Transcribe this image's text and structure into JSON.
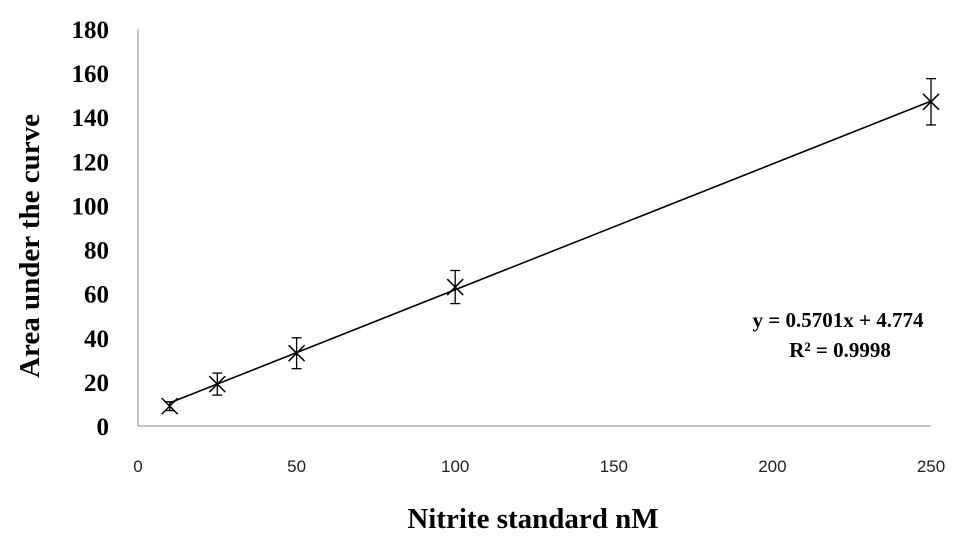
{
  "chart_data": {
    "type": "scatter",
    "xlabel": "Nitrite standard nM",
    "ylabel": "Area under the curve",
    "xlim": [
      0,
      250
    ],
    "ylim": [
      0,
      180
    ],
    "xticks": [
      0,
      50,
      100,
      150,
      200,
      250
    ],
    "yticks": [
      0,
      20,
      40,
      60,
      80,
      100,
      120,
      140,
      160,
      180
    ],
    "grid": false,
    "marker": "x",
    "points": [
      {
        "x": 10,
        "y": 9,
        "err": 2
      },
      {
        "x": 25,
        "y": 19,
        "err": 5
      },
      {
        "x": 50,
        "y": 33,
        "err": 7
      },
      {
        "x": 100,
        "y": 63,
        "err": 7.5
      },
      {
        "x": 250,
        "y": 147,
        "err": 10.5
      }
    ],
    "trendline": {
      "slope": 0.5701,
      "intercept": 4.774,
      "x_range": [
        10,
        250
      ]
    },
    "annotations": {
      "equation": "y = 0.5701x + 4.774",
      "r_squared": "R² = 0.9998"
    }
  }
}
